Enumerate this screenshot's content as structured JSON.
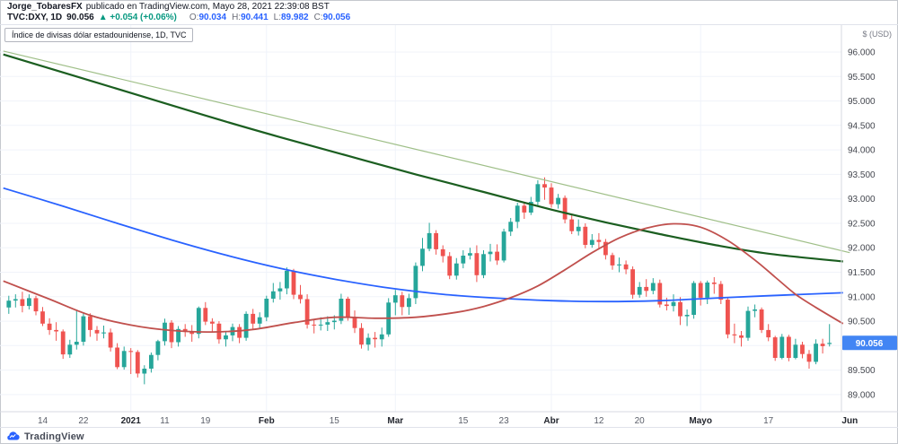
{
  "header": {
    "author": "Jorge_TobaresFX",
    "suffix": "publicado en TradingView.com, Mayo 28, 2021 22:39:08 BST",
    "symbol": "TVC:DXY, 1D",
    "price": "90.056",
    "change": "▲ +0.054 (+0.06%)",
    "o_label": "O:",
    "o_value": "90.034",
    "h_label": "H:",
    "h_value": "90.441",
    "l_label": "L:",
    "l_value": "89.982",
    "c_label": "C:",
    "c_value": "90.056"
  },
  "chart": {
    "legend": "Índice de divisas dólar estadounidense, 1D, TVC",
    "unit_label": "$ (USD)",
    "price_badge": "90.056"
  },
  "footer": {
    "brand": "TradingView"
  },
  "colors": {
    "up": "#26a69a",
    "down": "#ef5350",
    "grid": "#f0f3fa",
    "badge": "#4285f4",
    "frame": "#d7dae0",
    "axis_text": "#44474f",
    "change_green": "#089981",
    "value_blue": "#2962ff"
  },
  "chart_data": {
    "type": "candlestick",
    "title": "Índice de divisas dólar estadounidense, 1D, TVC",
    "symbol": "TVC:DXY",
    "interval": "1D",
    "last": {
      "open": 90.034,
      "high": 90.441,
      "low": 89.982,
      "close": 90.056,
      "change": 0.054,
      "change_pct": 0.06
    },
    "ylim": [
      88.65,
      96.55
    ],
    "y_ticks": [
      96,
      95.5,
      95,
      94.5,
      94,
      93.5,
      93,
      92.5,
      92,
      91.5,
      91,
      90.5,
      90,
      89.5,
      89
    ],
    "x_ticks": [
      {
        "label": "14",
        "i": 5,
        "major": false
      },
      {
        "label": "22",
        "i": 11,
        "major": false
      },
      {
        "label": "2021",
        "i": 18,
        "major": true
      },
      {
        "label": "11",
        "i": 23,
        "major": false
      },
      {
        "label": "19",
        "i": 29,
        "major": false
      },
      {
        "label": "Feb",
        "i": 38,
        "major": true
      },
      {
        "label": "15",
        "i": 48,
        "major": false
      },
      {
        "label": "Mar",
        "i": 57,
        "major": true
      },
      {
        "label": "15",
        "i": 67,
        "major": false
      },
      {
        "label": "23",
        "i": 73,
        "major": false
      },
      {
        "label": "Abr",
        "i": 80,
        "major": true
      },
      {
        "label": "12",
        "i": 87,
        "major": false
      },
      {
        "label": "20",
        "i": 93,
        "major": false
      },
      {
        "label": "Mayo",
        "i": 102,
        "major": true
      },
      {
        "label": "17",
        "i": 112,
        "major": false
      },
      {
        "label": "Jun",
        "i": 124,
        "major": true
      }
    ],
    "candles": [
      [
        90.78,
        91.02,
        90.65,
        90.92
      ],
      [
        90.92,
        91.05,
        90.78,
        90.95
      ],
      [
        90.95,
        91.1,
        90.68,
        90.81
      ],
      [
        90.81,
        91.05,
        90.74,
        90.97
      ],
      [
        90.97,
        91.02,
        90.62,
        90.7
      ],
      [
        90.7,
        90.79,
        90.4,
        90.45
      ],
      [
        90.45,
        90.56,
        90.22,
        90.32
      ],
      [
        90.32,
        90.48,
        90.1,
        90.29
      ],
      [
        90.29,
        90.33,
        89.73,
        89.82
      ],
      [
        89.82,
        90.12,
        89.75,
        90.02
      ],
      [
        90.02,
        90.72,
        89.92,
        90.08
      ],
      [
        90.08,
        90.68,
        90.0,
        90.6
      ],
      [
        90.6,
        90.66,
        90.18,
        90.32
      ],
      [
        90.32,
        90.4,
        90.1,
        90.25
      ],
      [
        90.25,
        90.41,
        90.15,
        90.27
      ],
      [
        90.27,
        90.35,
        89.88,
        89.96
      ],
      [
        89.96,
        90.05,
        89.52,
        89.56
      ],
      [
        89.56,
        89.98,
        89.51,
        89.89
      ],
      [
        89.89,
        89.95,
        89.42,
        89.87
      ],
      [
        89.87,
        89.91,
        89.35,
        89.43
      ],
      [
        89.43,
        89.6,
        89.21,
        89.53
      ],
      [
        89.53,
        89.86,
        89.45,
        89.81
      ],
      [
        89.81,
        90.12,
        89.7,
        90.09
      ],
      [
        90.09,
        90.55,
        90.0,
        90.47
      ],
      [
        90.47,
        90.52,
        89.95,
        90.07
      ],
      [
        90.07,
        90.4,
        89.98,
        90.34
      ],
      [
        90.34,
        90.44,
        90.18,
        90.28
      ],
      [
        90.28,
        90.42,
        90.08,
        90.24
      ],
      [
        90.24,
        90.8,
        90.15,
        90.77
      ],
      [
        90.77,
        90.89,
        90.42,
        90.49
      ],
      [
        90.49,
        90.56,
        90.28,
        90.45
      ],
      [
        90.45,
        90.5,
        90.04,
        90.13
      ],
      [
        90.13,
        90.3,
        89.98,
        90.21
      ],
      [
        90.21,
        90.45,
        90.09,
        90.38
      ],
      [
        90.38,
        90.44,
        90.05,
        90.16
      ],
      [
        90.16,
        90.7,
        90.1,
        90.65
      ],
      [
        90.65,
        90.75,
        90.32,
        90.45
      ],
      [
        90.45,
        90.68,
        90.34,
        90.58
      ],
      [
        90.58,
        91.02,
        90.5,
        90.96
      ],
      [
        90.96,
        91.28,
        90.88,
        91.11
      ],
      [
        91.11,
        91.3,
        90.94,
        91.17
      ],
      [
        91.17,
        91.6,
        91.05,
        91.53
      ],
      [
        91.53,
        91.57,
        90.95,
        91.04
      ],
      [
        91.04,
        91.24,
        90.86,
        90.95
      ],
      [
        90.95,
        91.05,
        90.35,
        90.43
      ],
      [
        90.43,
        90.52,
        90.25,
        90.42
      ],
      [
        90.42,
        90.58,
        90.31,
        90.43
      ],
      [
        90.43,
        90.6,
        90.3,
        90.48
      ],
      [
        90.48,
        90.62,
        90.33,
        90.51
      ],
      [
        90.51,
        91.06,
        90.44,
        90.96
      ],
      [
        90.96,
        91.0,
        90.51,
        90.59
      ],
      [
        90.59,
        90.72,
        90.26,
        90.36
      ],
      [
        90.36,
        90.46,
        89.94,
        90.02
      ],
      [
        90.02,
        90.25,
        89.9,
        90.16
      ],
      [
        90.16,
        90.28,
        89.96,
        90.13
      ],
      [
        90.13,
        90.37,
        89.98,
        90.23
      ],
      [
        90.23,
        90.97,
        90.18,
        90.88
      ],
      [
        90.88,
        91.14,
        90.62,
        91.03
      ],
      [
        91.03,
        91.1,
        90.62,
        90.79
      ],
      [
        90.79,
        91.06,
        90.63,
        90.97
      ],
      [
        90.97,
        91.7,
        90.85,
        91.63
      ],
      [
        91.63,
        92.2,
        91.52,
        91.98
      ],
      [
        91.98,
        92.51,
        91.93,
        92.3
      ],
      [
        92.3,
        92.36,
        91.86,
        91.97
      ],
      [
        91.97,
        92.05,
        91.7,
        91.83
      ],
      [
        91.83,
        91.91,
        91.36,
        91.43
      ],
      [
        91.43,
        91.79,
        91.35,
        91.68
      ],
      [
        91.68,
        91.95,
        91.58,
        91.84
      ],
      [
        91.84,
        92.0,
        91.76,
        91.89
      ],
      [
        91.89,
        92.05,
        91.3,
        91.44
      ],
      [
        91.44,
        91.95,
        91.38,
        91.87
      ],
      [
        91.87,
        92.08,
        91.72,
        91.92
      ],
      [
        91.92,
        92.07,
        91.65,
        91.74
      ],
      [
        91.74,
        92.39,
        91.7,
        92.33
      ],
      [
        92.33,
        92.61,
        92.24,
        92.53
      ],
      [
        92.53,
        92.92,
        92.4,
        92.86
      ],
      [
        92.86,
        92.94,
        92.59,
        92.72
      ],
      [
        92.72,
        93.04,
        92.67,
        92.94
      ],
      [
        92.94,
        93.38,
        92.85,
        93.3
      ],
      [
        93.3,
        93.44,
        92.98,
        93.23
      ],
      [
        93.23,
        93.32,
        92.82,
        92.89
      ],
      [
        92.89,
        93.1,
        92.8,
        93.02
      ],
      [
        93.02,
        93.07,
        92.5,
        92.58
      ],
      [
        92.58,
        92.7,
        92.28,
        92.34
      ],
      [
        92.34,
        92.58,
        92.25,
        92.43
      ],
      [
        92.43,
        92.5,
        91.99,
        92.06
      ],
      [
        92.06,
        92.28,
        92.0,
        92.16
      ],
      [
        92.16,
        92.3,
        91.98,
        92.12
      ],
      [
        92.12,
        92.18,
        91.76,
        91.85
      ],
      [
        91.85,
        91.9,
        91.55,
        91.64
      ],
      [
        91.64,
        91.8,
        91.5,
        91.66
      ],
      [
        91.66,
        91.74,
        91.46,
        91.56
      ],
      [
        91.56,
        91.62,
        90.96,
        91.04
      ],
      [
        91.04,
        91.3,
        90.98,
        91.2
      ],
      [
        91.2,
        91.36,
        91.0,
        91.12
      ],
      [
        91.12,
        91.38,
        91.05,
        91.28
      ],
      [
        91.28,
        91.35,
        90.78,
        90.84
      ],
      [
        90.84,
        90.98,
        90.72,
        90.81
      ],
      [
        90.81,
        91.05,
        90.7,
        90.89
      ],
      [
        90.89,
        90.99,
        90.42,
        90.6
      ],
      [
        90.6,
        90.74,
        90.4,
        90.63
      ],
      [
        90.63,
        91.32,
        90.55,
        91.28
      ],
      [
        91.28,
        91.32,
        90.82,
        90.98
      ],
      [
        90.98,
        91.33,
        90.85,
        91.29
      ],
      [
        91.29,
        91.4,
        91.06,
        91.26
      ],
      [
        91.26,
        91.32,
        90.85,
        90.94
      ],
      [
        90.94,
        90.98,
        90.15,
        90.23
      ],
      [
        90.23,
        90.45,
        90.05,
        90.21
      ],
      [
        90.21,
        90.3,
        89.98,
        90.16
      ],
      [
        90.16,
        90.8,
        90.1,
        90.71
      ],
      [
        90.71,
        90.84,
        90.58,
        90.74
      ],
      [
        90.74,
        90.78,
        90.26,
        90.32
      ],
      [
        90.32,
        90.44,
        90.09,
        90.17
      ],
      [
        90.17,
        90.2,
        89.69,
        89.75
      ],
      [
        89.75,
        90.24,
        89.72,
        90.18
      ],
      [
        90.18,
        90.22,
        89.68,
        89.75
      ],
      [
        89.75,
        90.14,
        89.72,
        90.02
      ],
      [
        90.02,
        90.08,
        89.74,
        89.83
      ],
      [
        89.83,
        89.91,
        89.53,
        89.67
      ],
      [
        89.67,
        90.13,
        89.62,
        90.04
      ],
      [
        90.04,
        90.14,
        89.84,
        89.99
      ],
      [
        90.034,
        90.441,
        89.982,
        90.056
      ]
    ],
    "overlays": [
      {
        "name": "trendline",
        "color": "#9fbf88",
        "width": 1.2,
        "points": [
          [
            -0.8,
            96.02
          ],
          [
            124,
            91.9
          ]
        ]
      },
      {
        "name": "sma-200",
        "color": "#1b5e20",
        "width": 2.2,
        "points": [
          [
            -0.8,
            95.95
          ],
          [
            10,
            95.5
          ],
          [
            20,
            95.08
          ],
          [
            30,
            94.66
          ],
          [
            40,
            94.26
          ],
          [
            50,
            93.88
          ],
          [
            60,
            93.5
          ],
          [
            70,
            93.14
          ],
          [
            80,
            92.78
          ],
          [
            88,
            92.52
          ],
          [
            96,
            92.28
          ],
          [
            104,
            92.06
          ],
          [
            112,
            91.88
          ],
          [
            123,
            91.72
          ]
        ]
      },
      {
        "name": "sma-100",
        "color": "#2962ff",
        "width": 1.8,
        "points": [
          [
            -0.8,
            93.22
          ],
          [
            8,
            92.85
          ],
          [
            16,
            92.5
          ],
          [
            24,
            92.16
          ],
          [
            32,
            91.85
          ],
          [
            40,
            91.58
          ],
          [
            48,
            91.36
          ],
          [
            56,
            91.18
          ],
          [
            64,
            91.05
          ],
          [
            72,
            90.97
          ],
          [
            80,
            90.92
          ],
          [
            88,
            90.9
          ],
          [
            96,
            90.92
          ],
          [
            104,
            90.97
          ],
          [
            112,
            91.02
          ],
          [
            123,
            91.08
          ]
        ]
      },
      {
        "name": "sma-50",
        "color": "#c0504d",
        "width": 1.8,
        "points": [
          [
            -0.8,
            91.32
          ],
          [
            6,
            90.95
          ],
          [
            12,
            90.62
          ],
          [
            18,
            90.42
          ],
          [
            24,
            90.31
          ],
          [
            30,
            90.28
          ],
          [
            36,
            90.33
          ],
          [
            42,
            90.47
          ],
          [
            48,
            90.58
          ],
          [
            54,
            90.56
          ],
          [
            60,
            90.58
          ],
          [
            66,
            90.68
          ],
          [
            70,
            90.8
          ],
          [
            74,
            90.98
          ],
          [
            78,
            91.22
          ],
          [
            82,
            91.55
          ],
          [
            86,
            91.9
          ],
          [
            90,
            92.2
          ],
          [
            94,
            92.4
          ],
          [
            98,
            92.49
          ],
          [
            102,
            92.42
          ],
          [
            106,
            92.15
          ],
          [
            110,
            91.75
          ],
          [
            113,
            91.4
          ],
          [
            116,
            91.05
          ],
          [
            119,
            90.78
          ],
          [
            123,
            90.45
          ]
        ]
      }
    ],
    "legend_position": "none",
    "grid": true
  }
}
